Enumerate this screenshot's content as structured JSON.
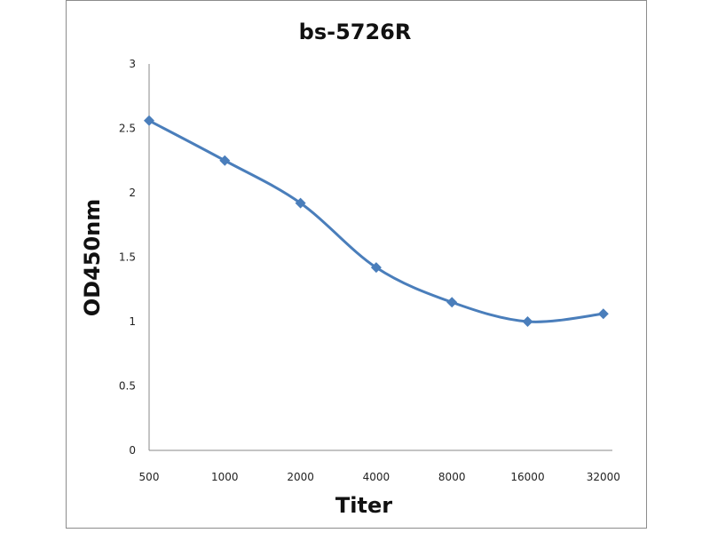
{
  "chart_data": {
    "type": "line",
    "title": "bs-5726R",
    "xlabel": "Titer",
    "ylabel": "OD450nm",
    "categories": [
      "500",
      "1000",
      "2000",
      "4000",
      "8000",
      "16000",
      "32000"
    ],
    "series": [
      {
        "name": "bs-5726R",
        "values": [
          2.56,
          2.25,
          1.92,
          1.42,
          1.15,
          1.0,
          1.06
        ],
        "color": "#4a7ebb"
      }
    ],
    "ylim": [
      0,
      3
    ],
    "yticks": [
      "0",
      "0.5",
      "1",
      "1.5",
      "2",
      "2.5",
      "3"
    ],
    "grid": false,
    "legend": "none"
  }
}
